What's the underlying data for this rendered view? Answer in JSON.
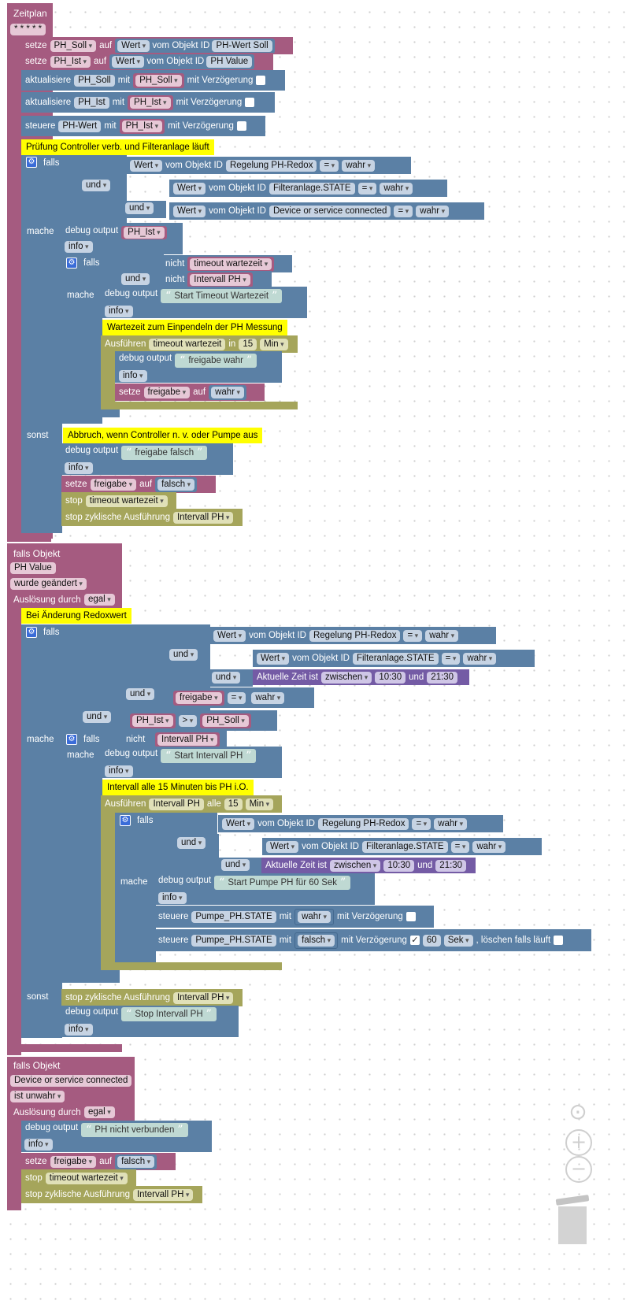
{
  "workspace": {
    "bg_color": "#ffffff",
    "colors": {
      "event": "#a55b80",
      "logic": "#5b80a5",
      "timer": "#a5a55b",
      "time": "#745ba5",
      "comment": "#ffff00"
    }
  },
  "schedule": {
    "title": "Zeitplan",
    "cron": "* * * * *",
    "s1": {
      "pre": "setze",
      "var": "PH_Soll",
      "mid": "auf",
      "val": "Wert",
      "obj": "vom Objekt ID",
      "id": "PH-Wert Soll"
    },
    "s2": {
      "pre": "setze",
      "var": "PH_Ist",
      "mid": "auf",
      "val": "Wert",
      "obj": "vom Objekt ID",
      "id": "PH Value"
    },
    "s3": {
      "pre": "aktualisiere",
      "target": "PH_Soll",
      "with": "mit",
      "var": "PH_Soll",
      "delay": "mit Verzögerung"
    },
    "s4": {
      "pre": "aktualisiere",
      "target": "PH_Ist",
      "with": "mit",
      "var": "PH_Ist",
      "delay": "mit Verzögerung"
    },
    "s5": {
      "pre": "steuere",
      "target": "PH-Wert",
      "with": "mit",
      "var": "PH_Ist",
      "delay": "mit Verzögerung"
    },
    "comment1": "Prüfung Controller verb. und Filteranlage läuft",
    "if1": {
      "falls": "falls",
      "c1": {
        "val": "Wert",
        "obj": "vom Objekt ID",
        "id": "Regelung PH-Redox",
        "op": "=",
        "cmp": "wahr"
      },
      "and1": "und",
      "c2": {
        "val": "Wert",
        "obj": "vom Objekt ID",
        "id": "Filteranlage.STATE",
        "op": "=",
        "cmp": "wahr"
      },
      "and2": "und",
      "c3": {
        "val": "Wert",
        "obj": "vom Objekt ID",
        "id": "Device or service connected",
        "op": "=",
        "cmp": "wahr"
      },
      "mache": "mache",
      "dbg1": {
        "label": "debug output",
        "var": "PH_Ist",
        "level": "info"
      },
      "if2": {
        "falls": "falls",
        "not1": "nicht",
        "v1": "timeout wartezeit",
        "and": "und",
        "not2": "nicht",
        "v2": "Intervall PH",
        "mache": "mache",
        "dbg": {
          "label": "debug output",
          "text": "Start Timeout Wartezeit",
          "level": "info"
        },
        "comment": "Wartezeit zum Einpendeln der PH Messung",
        "exec": {
          "label": "Ausführen",
          "name": "timeout wartezeit",
          "in": "in",
          "n": "15",
          "unit": "Min"
        },
        "dbg2": {
          "label": "debug output",
          "text": "freigabe wahr",
          "level": "info"
        },
        "set": {
          "pre": "setze",
          "var": "freigabe",
          "mid": "auf",
          "val": "wahr"
        }
      },
      "sonst": "sonst",
      "comment2": "Abbruch, wenn Controller n. v. oder Pumpe aus",
      "dbg3": {
        "label": "debug output",
        "text": "freigabe falsch",
        "level": "info"
      },
      "set2": {
        "pre": "setze",
        "var": "freigabe",
        "mid": "auf",
        "val": "falsch"
      },
      "stop1": {
        "label": "stop",
        "name": "timeout wartezeit"
      },
      "stop2": {
        "label": "stop zyklische Ausführung",
        "name": "Intervall PH"
      }
    }
  },
  "trigger1": {
    "title": "falls Objekt",
    "obj": "PH Value",
    "cond": "wurde geändert",
    "by_label": "Auslösung durch",
    "by": "egal",
    "comment": "Bei Änderung Redoxwert",
    "if": {
      "falls": "falls",
      "c1": {
        "val": "Wert",
        "obj": "vom Objekt ID",
        "id": "Regelung PH-Redox",
        "op": "=",
        "cmp": "wahr"
      },
      "and1": "und",
      "c2": {
        "val": "Wert",
        "obj": "vom Objekt ID",
        "id": "Filteranlage.STATE",
        "op": "=",
        "cmp": "wahr"
      },
      "and2": "und",
      "time": {
        "label": "Aktuelle Zeit ist",
        "op": "zwischen",
        "from": "10:30",
        "and": "und",
        "to": "21:30"
      },
      "and3": "und",
      "freigabe": {
        "var": "freigabe",
        "op": "=",
        "cmp": "wahr"
      },
      "and4": "und",
      "cmp": {
        "a": "PH_Ist",
        "op": ">",
        "b": "PH_Soll"
      },
      "mache": "mache",
      "if2": {
        "falls": "falls",
        "not": "nicht",
        "v": "Intervall PH",
        "mache": "mache",
        "dbg": {
          "label": "debug output",
          "text": "Start Intervall PH",
          "level": "info"
        },
        "comment": "Intervall alle 15 Minuten bis PH i.O.",
        "exec": {
          "label": "Ausführen",
          "name": "Intervall PH",
          "every": "alle",
          "n": "15",
          "unit": "Min"
        },
        "if3": {
          "falls": "falls",
          "c1": {
            "val": "Wert",
            "obj": "vom Objekt ID",
            "id": "Regelung PH-Redox",
            "op": "=",
            "cmp": "wahr"
          },
          "and1": "und",
          "c2": {
            "val": "Wert",
            "obj": "vom Objekt ID",
            "id": "Filteranlage.STATE",
            "op": "=",
            "cmp": "wahr"
          },
          "and2": "und",
          "time": {
            "label": "Aktuelle Zeit ist",
            "op": "zwischen",
            "from": "10:30",
            "and": "und",
            "to": "21:30"
          },
          "mache": "mache",
          "dbg": {
            "label": "debug output",
            "text": "Start Pumpe PH für 60 Sek",
            "level": "info"
          },
          "st1": {
            "pre": "steuere",
            "target": "Pumpe_PH.STATE",
            "with": "mit",
            "val": "wahr",
            "delay": "mit Verzögerung"
          },
          "st2": {
            "pre": "steuere",
            "target": "Pumpe_PH.STATE",
            "with": "mit",
            "val": "falsch",
            "delay": "mit Verzögerung",
            "check": "✓",
            "n": "60",
            "unit": "Sek",
            "clear": ", löschen falls läuft"
          }
        }
      },
      "sonst": "sonst",
      "stop": {
        "label": "stop zyklische Ausführung",
        "name": "Intervall PH"
      },
      "dbg": {
        "label": "debug output",
        "text": "Stop Intervall PH",
        "level": "info"
      }
    }
  },
  "trigger2": {
    "title": "falls Objekt",
    "obj": "Device or service connected",
    "cond": "ist unwahr",
    "by_label": "Auslösung durch",
    "by": "egal",
    "dbg": {
      "label": "debug output",
      "text": "PH nicht verbunden",
      "level": "info"
    },
    "set": {
      "pre": "setze",
      "var": "freigabe",
      "mid": "auf",
      "val": "falsch"
    },
    "stop1": {
      "label": "stop",
      "name": "timeout wartezeit"
    },
    "stop2": {
      "label": "stop zyklische Ausführung",
      "name": "Intervall PH"
    }
  },
  "controls": {
    "center": "⊙",
    "zoom_in": "+",
    "zoom_out": "−"
  }
}
